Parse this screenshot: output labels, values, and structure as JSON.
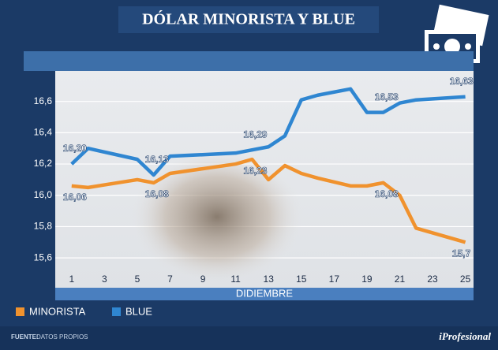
{
  "chart_data": {
    "type": "line",
    "title": "DÓLAR MINORISTA Y BLUE",
    "x_label": "DIDIEMBRE",
    "x": [
      1,
      2,
      5,
      6,
      7,
      11,
      12,
      13,
      14,
      15,
      16,
      18,
      19,
      20,
      21,
      22,
      25
    ],
    "series": [
      {
        "name": "MINORISTA",
        "color": "#f0922e",
        "values": [
          16.06,
          16.05,
          16.1,
          16.08,
          16.14,
          16.2,
          16.23,
          16.1,
          16.19,
          16.14,
          16.11,
          16.06,
          16.06,
          16.08,
          16.0,
          15.79,
          15.7
        ],
        "value_labels": [
          "16,06",
          null,
          null,
          "16,08",
          null,
          null,
          "16,23",
          null,
          null,
          null,
          null,
          null,
          null,
          "16,08",
          null,
          null,
          "15,7"
        ]
      },
      {
        "name": "BLUE",
        "color": "#2f86d1",
        "values": [
          16.2,
          16.3,
          16.23,
          16.13,
          16.25,
          16.27,
          16.29,
          16.31,
          16.38,
          16.61,
          16.64,
          16.68,
          16.53,
          16.53,
          16.59,
          16.61,
          16.63
        ],
        "value_labels": [
          "16,20",
          null,
          null,
          "16,13",
          null,
          null,
          "16,29",
          null,
          null,
          null,
          null,
          null,
          null,
          "16,53",
          null,
          null,
          "16,63"
        ]
      }
    ],
    "xlim": [
      0,
      25.5
    ],
    "xticks": [
      1,
      3,
      5,
      7,
      9,
      11,
      13,
      15,
      17,
      19,
      21,
      23,
      25
    ],
    "ylim": [
      15.5,
      16.8
    ],
    "yticks": [
      {
        "value": 15.6,
        "label": "15,6"
      },
      {
        "value": 15.8,
        "label": "15,8"
      },
      {
        "value": 16.0,
        "label": "16,0"
      },
      {
        "value": 16.2,
        "label": "16,2"
      },
      {
        "value": 16.4,
        "label": "16,4"
      },
      {
        "value": 16.6,
        "label": "16,6"
      }
    ],
    "grid": true
  },
  "footer": {
    "source_label": "FUENTE:",
    "source": "DATOS PROPIOS",
    "brand": "iProfesional"
  }
}
